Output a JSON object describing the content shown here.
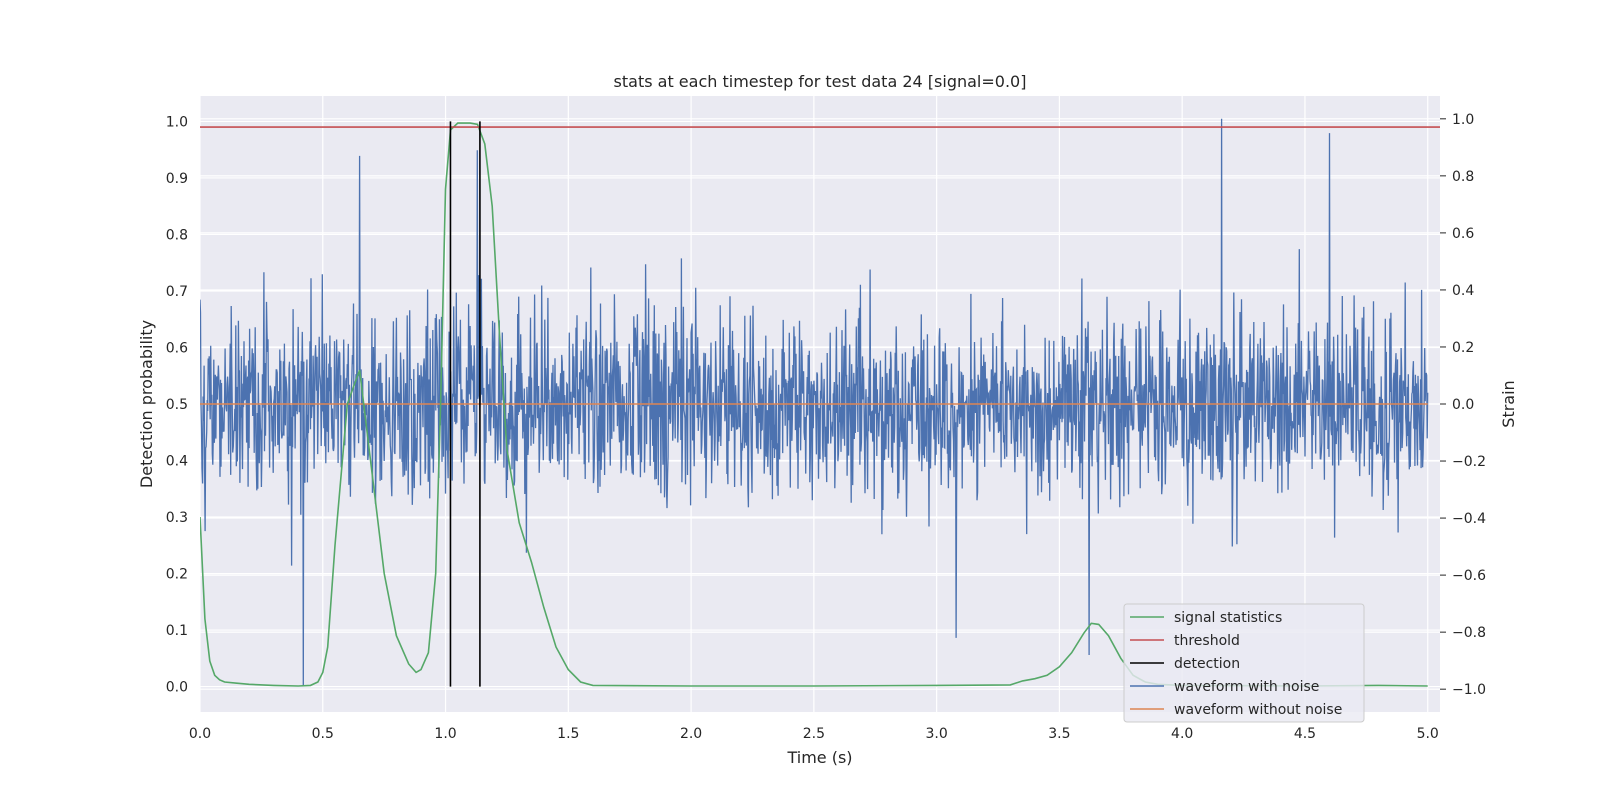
{
  "chart_data": {
    "type": "line",
    "title": "stats at each timestep for test data 24 [signal=0.0]",
    "xlabel": "Time (s)",
    "ylabel_left": "Detection probability",
    "ylabel_right": "Strain",
    "xlim": [
      0.0,
      5.05
    ],
    "ylim_left": [
      -0.045,
      1.045
    ],
    "ylim_right": [
      -1.08,
      1.08
    ],
    "x_ticks": [
      "0.0",
      "0.5",
      "1.0",
      "1.5",
      "2.0",
      "2.5",
      "3.0",
      "3.5",
      "4.0",
      "4.5",
      "5.0"
    ],
    "x_tick_values": [
      0.0,
      0.5,
      1.0,
      1.5,
      2.0,
      2.5,
      3.0,
      3.5,
      4.0,
      4.5,
      5.0
    ],
    "y_ticks_left": [
      "0.0",
      "0.1",
      "0.2",
      "0.3",
      "0.4",
      "0.5",
      "0.6",
      "0.7",
      "0.8",
      "0.9",
      "1.0"
    ],
    "y_tick_values_left": [
      0.0,
      0.1,
      0.2,
      0.3,
      0.4,
      0.5,
      0.6,
      0.7,
      0.8,
      0.9,
      1.0
    ],
    "y_ticks_right": [
      "−1.0",
      "−0.8",
      "−0.6",
      "−0.4",
      "−0.2",
      "0.0",
      "0.2",
      "0.4",
      "0.6",
      "0.8",
      "1.0"
    ],
    "y_tick_values_right": [
      -1.0,
      -0.8,
      -0.6,
      -0.4,
      -0.2,
      0.0,
      0.2,
      0.4,
      0.6,
      0.8,
      1.0
    ],
    "grid": true,
    "legend_position": "lower-right",
    "series": [
      {
        "name": "signal statistics",
        "axis": "left",
        "color": "#55a868",
        "x": [
          0.0,
          0.02,
          0.04,
          0.06,
          0.08,
          0.1,
          0.15,
          0.2,
          0.3,
          0.4,
          0.45,
          0.48,
          0.5,
          0.52,
          0.55,
          0.6,
          0.65,
          0.7,
          0.75,
          0.8,
          0.85,
          0.88,
          0.9,
          0.93,
          0.96,
          0.98,
          1.0,
          1.02,
          1.05,
          1.1,
          1.13,
          1.16,
          1.19,
          1.22,
          1.25,
          1.3,
          1.35,
          1.4,
          1.45,
          1.5,
          1.55,
          1.6,
          2.0,
          2.5,
          3.0,
          3.3,
          3.35,
          3.4,
          3.45,
          3.5,
          3.55,
          3.6,
          3.63,
          3.66,
          3.7,
          3.75,
          3.8,
          3.85,
          3.9,
          4.0,
          4.5,
          4.8,
          5.0
        ],
        "y": [
          0.3,
          0.12,
          0.045,
          0.02,
          0.012,
          0.008,
          0.006,
          0.004,
          0.002,
          0.001,
          0.002,
          0.008,
          0.025,
          0.07,
          0.25,
          0.5,
          0.56,
          0.38,
          0.2,
          0.09,
          0.04,
          0.025,
          0.03,
          0.06,
          0.2,
          0.5,
          0.88,
          0.985,
          0.997,
          0.997,
          0.995,
          0.96,
          0.85,
          0.62,
          0.42,
          0.29,
          0.22,
          0.14,
          0.07,
          0.03,
          0.008,
          0.002,
          0.001,
          0.001,
          0.002,
          0.003,
          0.01,
          0.014,
          0.02,
          0.035,
          0.06,
          0.095,
          0.112,
          0.11,
          0.09,
          0.05,
          0.02,
          0.008,
          0.004,
          0.002,
          0.001,
          0.002,
          0.001
        ]
      },
      {
        "name": "threshold",
        "axis": "left",
        "color": "#c44e52",
        "y": 0.99
      },
      {
        "name": "detection",
        "axis": "left",
        "color": "#000000",
        "x": [
          1.02,
          1.14
        ],
        "y_range": [
          0.0,
          1.0
        ]
      },
      {
        "name": "waveform with noise",
        "axis": "right",
        "color": "#4c72b0",
        "sigma": 0.16,
        "x_range": [
          0.0,
          5.0
        ],
        "spikes": [
          {
            "x": 0.65,
            "y": 0.87
          },
          {
            "x": 1.13,
            "y": 0.89
          },
          {
            "x": 4.16,
            "y": 1.0
          },
          {
            "x": 4.6,
            "y": 0.95
          },
          {
            "x": 0.42,
            "y": -0.99
          },
          {
            "x": 3.08,
            "y": -0.82
          },
          {
            "x": 3.62,
            "y": -0.88
          }
        ]
      },
      {
        "name": "waveform without noise",
        "axis": "right",
        "color": "#dd8452",
        "y": 0.0
      }
    ]
  }
}
